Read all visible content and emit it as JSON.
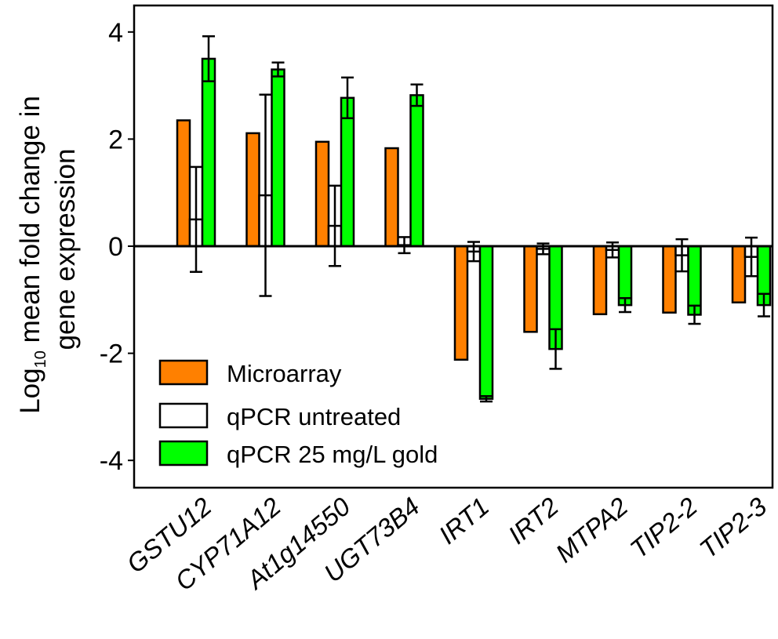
{
  "chart_data": {
    "type": "bar",
    "title": "",
    "xlabel": "",
    "ylabel": {
      "line1_prefix": "Log",
      "line1_subscript": "10",
      "line1_suffix": " mean fold change in",
      "line2": "gene expression"
    },
    "ylim": [
      -4.5,
      4.5
    ],
    "yticks": [
      4,
      2,
      0,
      -2,
      -4
    ],
    "ytick_labels": [
      "4",
      "2",
      "0",
      "-2",
      "-4"
    ],
    "grid": false,
    "legend_position": "bottom-left",
    "categories": [
      "GSTU12",
      "CYP71A12",
      "At1g14550",
      "UGT73B4",
      "IRT1",
      "IRT2",
      "MTPA2",
      "TIP2-2",
      "TIP2-3"
    ],
    "series": [
      {
        "name": "Microarray",
        "color": "#ff8000",
        "values": [
          2.35,
          2.11,
          1.95,
          1.83,
          -2.12,
          -1.6,
          -1.27,
          -1.24,
          -1.05
        ],
        "errors": [
          null,
          null,
          null,
          null,
          null,
          null,
          null,
          null,
          null
        ]
      },
      {
        "name": "qPCR untreated",
        "color": "#ffffff",
        "values": [
          0.5,
          0.95,
          0.38,
          0.02,
          -0.1,
          -0.05,
          -0.07,
          -0.17,
          -0.2
        ],
        "errors": [
          0.98,
          1.88,
          0.75,
          0.15,
          0.18,
          0.1,
          0.14,
          0.3,
          0.36
        ]
      },
      {
        "name": "qPCR 25 mg/L gold",
        "color": "#00ff00",
        "values": [
          3.5,
          3.3,
          2.77,
          2.82,
          -2.85,
          -1.92,
          -1.1,
          -1.28,
          -1.1
        ],
        "errors": [
          0.42,
          0.13,
          0.38,
          0.2,
          0.05,
          0.37,
          0.13,
          0.17,
          0.21
        ]
      }
    ]
  }
}
